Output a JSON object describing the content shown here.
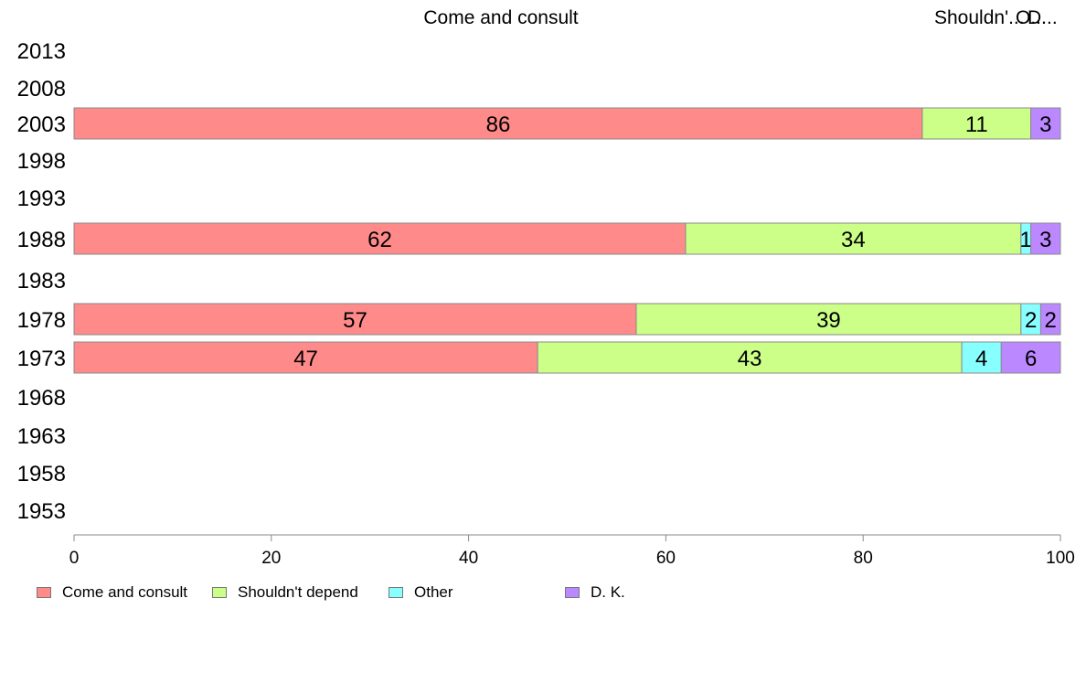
{
  "chart_data": {
    "type": "bar",
    "orientation": "horizontal",
    "stacked": true,
    "categories": [
      "2013",
      "2008",
      "2003",
      "1998",
      "1993",
      "1988",
      "1983",
      "1978",
      "1973",
      "1968",
      "1963",
      "1958",
      "1953"
    ],
    "top_labels": [
      "Come and consult",
      "Shouldn'...",
      "O...",
      "D..."
    ],
    "series": [
      {
        "name": "Come and consult",
        "color": "#ff8a8a",
        "values": [
          null,
          null,
          86,
          null,
          null,
          62,
          null,
          57,
          47,
          null,
          null,
          null,
          null
        ]
      },
      {
        "name": "Shouldn't depend",
        "color": "#ccff88",
        "values": [
          null,
          null,
          11,
          null,
          null,
          34,
          null,
          39,
          43,
          null,
          null,
          null,
          null
        ]
      },
      {
        "name": "Other",
        "color": "#88ffff",
        "values": [
          null,
          null,
          0,
          null,
          null,
          1,
          null,
          2,
          4,
          null,
          null,
          null,
          null
        ]
      },
      {
        "name": "D. K.",
        "color": "#bb88ff",
        "values": [
          null,
          null,
          3,
          null,
          null,
          3,
          null,
          2,
          6,
          null,
          null,
          null,
          null
        ]
      }
    ],
    "data_labels": [
      [
        null,
        null,
        "86",
        null,
        null,
        "62",
        null,
        "57",
        "47",
        null,
        null,
        null,
        null
      ],
      [
        null,
        null,
        "11",
        null,
        null,
        "34",
        null,
        "39",
        "43",
        null,
        null,
        null,
        null
      ],
      [
        null,
        null,
        null,
        null,
        null,
        "1",
        null,
        "2",
        "4",
        null,
        null,
        null,
        null
      ],
      [
        null,
        null,
        "3",
        null,
        null,
        "3",
        null,
        "2",
        "6",
        null,
        null,
        null,
        null
      ]
    ],
    "xlim": [
      0,
      100
    ],
    "xticks": [
      "0",
      "20",
      "40",
      "60",
      "80",
      "100"
    ],
    "xlabel": "",
    "ylabel": "",
    "grid": false,
    "legend_position": "bottom"
  }
}
